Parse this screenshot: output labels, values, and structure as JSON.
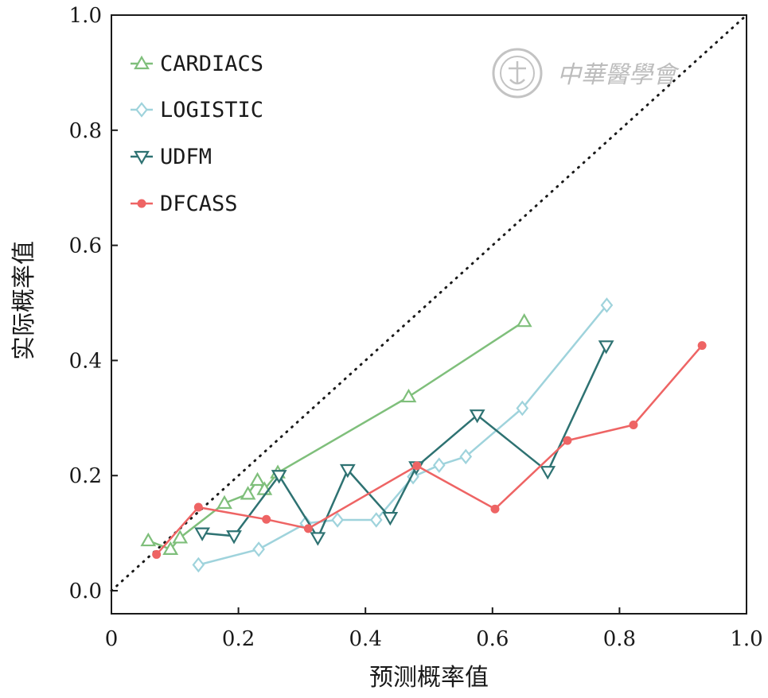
{
  "chart_data": {
    "type": "line",
    "title": "",
    "xlabel": "预测概率值",
    "ylabel": "实际概率值",
    "xlim": [
      0,
      1.0
    ],
    "ylim": [
      -0.04,
      1.0
    ],
    "x_ticks": [
      "0",
      "0.2",
      "0.4",
      "0.6",
      "0.8",
      "1.0"
    ],
    "x_tick_values": [
      0,
      0.2,
      0.4,
      0.6,
      0.8,
      1.0
    ],
    "y_ticks": [
      "0.0",
      "0.2",
      "0.4",
      "0.6",
      "0.8",
      "1.0"
    ],
    "y_tick_values": [
      0,
      0.2,
      0.4,
      0.6,
      0.8,
      1.0
    ],
    "grid": false,
    "legend_position": "top-left",
    "reference_line": {
      "style": "dotted",
      "x": [
        0,
        1.0
      ],
      "y": [
        0,
        1.0
      ]
    },
    "series": [
      {
        "name": "CARDIACS",
        "color": "#7fbf7b",
        "marker": "triangle-up",
        "x": [
          0.058,
          0.093,
          0.108,
          0.178,
          0.215,
          0.23,
          0.241,
          0.262,
          0.468,
          0.65
        ],
        "y": [
          0.087,
          0.072,
          0.092,
          0.152,
          0.168,
          0.192,
          0.176,
          0.205,
          0.337,
          0.468
        ]
      },
      {
        "name": "LOGISTIC",
        "color": "#9fd3dc",
        "marker": "diamond",
        "x": [
          0.137,
          0.232,
          0.306,
          0.356,
          0.417,
          0.475,
          0.516,
          0.558,
          0.647,
          0.78
        ],
        "y": [
          0.045,
          0.072,
          0.117,
          0.123,
          0.123,
          0.198,
          0.218,
          0.233,
          0.317,
          0.496
        ]
      },
      {
        "name": "UDFM",
        "color": "#2e7272",
        "marker": "triangle-down",
        "x": [
          0.143,
          0.193,
          0.264,
          0.325,
          0.372,
          0.439,
          0.48,
          0.576,
          0.687,
          0.779
        ],
        "y": [
          0.1,
          0.095,
          0.2,
          0.092,
          0.21,
          0.127,
          0.215,
          0.305,
          0.207,
          0.425
        ]
      },
      {
        "name": "DFCASS",
        "color": "#ee6464",
        "marker": "circle",
        "x": [
          0.071,
          0.137,
          0.244,
          0.31,
          0.481,
          0.604,
          0.718,
          0.822,
          0.93
        ],
        "y": [
          0.063,
          0.145,
          0.124,
          0.108,
          0.217,
          0.142,
          0.261,
          0.288,
          0.426
        ]
      }
    ]
  },
  "watermark": {
    "seal_text": "中華醫學會",
    "caption": "中華醫學會"
  }
}
